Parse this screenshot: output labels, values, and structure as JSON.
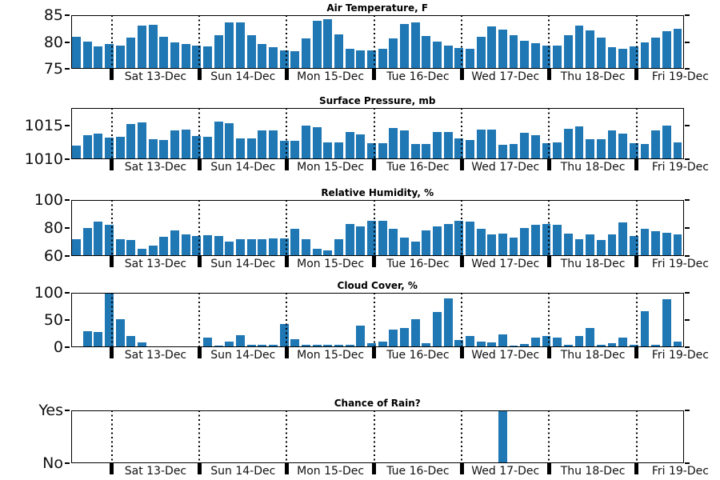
{
  "figure": {
    "background": "#ffffff",
    "bar_color": "#1f77b4",
    "axis_color": "#000000",
    "text_color": "#111111"
  },
  "x_axis": {
    "day_labels": [
      "Sat 13-Dec",
      "Sun 14-Dec",
      "Mon 15-Dec",
      "Tue 16-Dec",
      "Wed 17-Dec",
      "Thu 18-Dec",
      "Fri 19-Dec"
    ],
    "bars_per_day": 8,
    "total_bars": 56
  },
  "chart_data": [
    {
      "type": "bar",
      "title": "Air Temperature, F",
      "ylabel": "",
      "ylim": [
        75,
        85
      ],
      "grid": "vertical-dotted-day-lines",
      "yticks": [
        {
          "value": 75,
          "label": "75"
        },
        {
          "value": 80,
          "label": "80"
        },
        {
          "value": 85,
          "label": "85"
        }
      ],
      "values": [
        81.0,
        80.1,
        79.2,
        79.6,
        79.4,
        80.8,
        83.1,
        83.2,
        81.0,
        79.9,
        79.6,
        79.4,
        79.2,
        81.2,
        83.6,
        83.6,
        81.2,
        79.7,
        79.1,
        78.4,
        78.3,
        80.7,
        83.9,
        84.2,
        81.4,
        78.8,
        78.5,
        78.4,
        78.7,
        80.6,
        83.3,
        83.7,
        81.1,
        80.1,
        79.4,
        78.9,
        78.8,
        80.9,
        82.9,
        82.3,
        81.2,
        80.2,
        79.8,
        79.4,
        79.4,
        81.2,
        83.1,
        82.2,
        80.8,
        79.0,
        78.7,
        79.2,
        79.9,
        80.8,
        82.0,
        82.4
      ]
    },
    {
      "type": "bar",
      "title": "Surface Pressure, mb",
      "ylabel": "",
      "ylim": [
        1010,
        1017.6
      ],
      "grid": "vertical-dotted-day-lines",
      "yticks": [
        {
          "value": 1010,
          "label": "1010"
        },
        {
          "value": 1015,
          "label": "1015"
        }
      ],
      "values": [
        1012.0,
        1013.5,
        1013.8,
        1013.2,
        1013.3,
        1015.2,
        1015.4,
        1012.9,
        1012.8,
        1014.2,
        1014.4,
        1013.4,
        1013.3,
        1015.6,
        1015.3,
        1013.0,
        1013.0,
        1014.3,
        1014.2,
        1012.7,
        1012.7,
        1015.0,
        1014.7,
        1012.5,
        1012.5,
        1014.0,
        1013.6,
        1012.3,
        1012.3,
        1014.6,
        1014.3,
        1012.2,
        1012.2,
        1014.0,
        1014.0,
        1013.1,
        1012.8,
        1014.4,
        1014.4,
        1012.1,
        1012.2,
        1013.9,
        1013.5,
        1012.3,
        1012.5,
        1014.5,
        1014.8,
        1012.9,
        1012.9,
        1014.3,
        1013.8,
        1012.3,
        1012.2,
        1014.3,
        1015.0,
        1012.5
      ]
    },
    {
      "type": "bar",
      "title": "Relative Humidity, %",
      "ylabel": "",
      "ylim": [
        60,
        100
      ],
      "grid": "vertical-dotted-day-lines",
      "yticks": [
        {
          "value": 60,
          "label": "60"
        },
        {
          "value": 80,
          "label": "80"
        },
        {
          "value": 100,
          "label": "100"
        }
      ],
      "values": [
        72,
        80,
        84.5,
        82,
        72,
        71,
        65,
        67,
        73.5,
        78,
        75,
        74,
        74.5,
        74,
        70,
        72,
        72,
        72,
        72.5,
        72.5,
        79,
        72,
        65,
        64,
        72,
        83,
        81,
        85,
        85,
        79,
        73,
        70,
        78,
        81,
        83,
        85,
        84.5,
        79,
        75.5,
        76,
        73,
        80,
        82,
        83,
        82,
        76,
        72,
        75,
        71,
        75,
        84,
        74,
        79,
        77.5,
        76.5,
        75.5
      ]
    },
    {
      "type": "bar",
      "title": "Cloud Cover, %",
      "ylabel": "",
      "ylim": [
        0,
        100
      ],
      "grid": "vertical-dotted-day-lines",
      "yticks": [
        {
          "value": 0,
          "label": "0"
        },
        {
          "value": 50,
          "label": "50"
        },
        {
          "value": 100,
          "label": "100"
        }
      ],
      "values": [
        0,
        29,
        28,
        100,
        52,
        20,
        9,
        0,
        2,
        0,
        0,
        0,
        18,
        3,
        11,
        22,
        4,
        4,
        4,
        42,
        14,
        4,
        4,
        4,
        4,
        4,
        40,
        8,
        11,
        32,
        35,
        52,
        7,
        64,
        89,
        13,
        20,
        10,
        9,
        23,
        3,
        6,
        17,
        20,
        17,
        5,
        21,
        35,
        5,
        7,
        17,
        4,
        66,
        4,
        88,
        10
      ]
    },
    {
      "type": "bar",
      "title": "Chance of Rain?",
      "ylabel": "",
      "ylim": [
        0,
        1
      ],
      "grid": "vertical-dotted-day-lines",
      "yticks": [
        {
          "value": 0,
          "label": "No"
        },
        {
          "value": 1,
          "label": "Yes"
        }
      ],
      "values": [
        0,
        0,
        0,
        0,
        0,
        0,
        0,
        0,
        0,
        0,
        0,
        0,
        0,
        0,
        0,
        0,
        0,
        0,
        0,
        0,
        0,
        0,
        0,
        0,
        0,
        0,
        0,
        0,
        0,
        0,
        0,
        0,
        0,
        0,
        0,
        0,
        0,
        0,
        0,
        1,
        0,
        0,
        0,
        0,
        0,
        0,
        0,
        0,
        0,
        0,
        0,
        0,
        0,
        0,
        0,
        0
      ]
    }
  ]
}
